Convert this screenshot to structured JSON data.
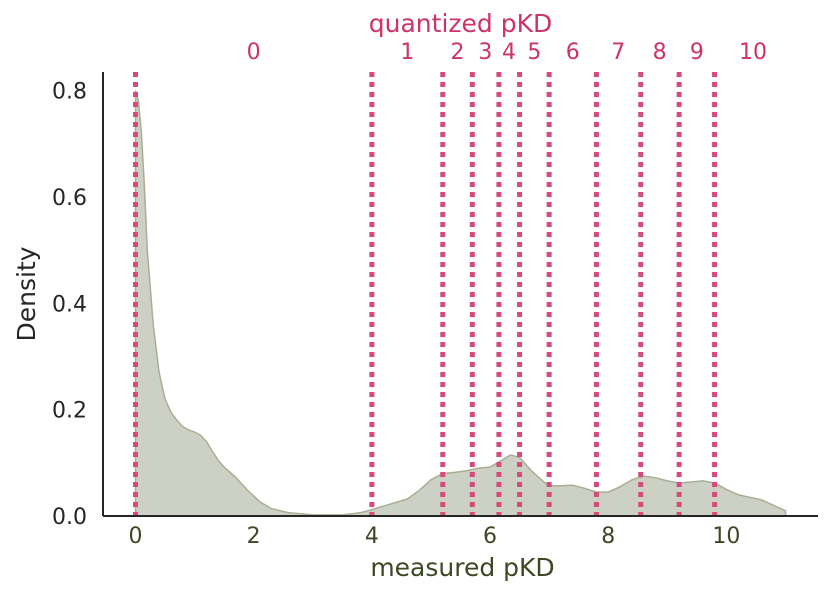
{
  "chart_data": {
    "type": "area",
    "title": "",
    "xlabel": "measured pKD",
    "ylabel": "Density",
    "top_axis_label": "quantized pKD",
    "xlim": [
      -0.55,
      11.55
    ],
    "ylim": [
      0,
      0.835
    ],
    "x_ticks": [
      0,
      2,
      4,
      6,
      8,
      10
    ],
    "y_ticks": [
      0.0,
      0.2,
      0.4,
      0.6,
      0.8
    ],
    "y_tick_labels": [
      "0.0",
      "0.2",
      "0.4",
      "0.6",
      "0.8"
    ],
    "grid": false,
    "series": [
      {
        "points": [
          [
            0.0,
            0.8
          ],
          [
            0.05,
            0.78
          ],
          [
            0.1,
            0.72
          ],
          [
            0.15,
            0.62
          ],
          [
            0.2,
            0.5
          ],
          [
            0.3,
            0.36
          ],
          [
            0.4,
            0.27
          ],
          [
            0.5,
            0.22
          ],
          [
            0.6,
            0.195
          ],
          [
            0.7,
            0.18
          ],
          [
            0.8,
            0.168
          ],
          [
            0.9,
            0.162
          ],
          [
            1.0,
            0.158
          ],
          [
            1.1,
            0.152
          ],
          [
            1.2,
            0.14
          ],
          [
            1.3,
            0.122
          ],
          [
            1.4,
            0.105
          ],
          [
            1.5,
            0.092
          ],
          [
            1.7,
            0.072
          ],
          [
            1.9,
            0.048
          ],
          [
            2.1,
            0.027
          ],
          [
            2.3,
            0.014
          ],
          [
            2.6,
            0.006
          ],
          [
            3.0,
            0.002
          ],
          [
            3.5,
            0.002
          ],
          [
            3.8,
            0.006
          ],
          [
            4.0,
            0.012
          ],
          [
            4.3,
            0.022
          ],
          [
            4.6,
            0.032
          ],
          [
            4.8,
            0.048
          ],
          [
            5.0,
            0.068
          ],
          [
            5.2,
            0.08
          ],
          [
            5.4,
            0.082
          ],
          [
            5.6,
            0.085
          ],
          [
            5.8,
            0.09
          ],
          [
            6.0,
            0.092
          ],
          [
            6.2,
            0.105
          ],
          [
            6.35,
            0.115
          ],
          [
            6.5,
            0.11
          ],
          [
            6.7,
            0.085
          ],
          [
            6.9,
            0.065
          ],
          [
            7.0,
            0.057
          ],
          [
            7.2,
            0.057
          ],
          [
            7.4,
            0.058
          ],
          [
            7.6,
            0.052
          ],
          [
            7.8,
            0.045
          ],
          [
            8.0,
            0.045
          ],
          [
            8.2,
            0.055
          ],
          [
            8.4,
            0.068
          ],
          [
            8.6,
            0.075
          ],
          [
            8.8,
            0.072
          ],
          [
            9.0,
            0.066
          ],
          [
            9.2,
            0.062
          ],
          [
            9.4,
            0.064
          ],
          [
            9.6,
            0.066
          ],
          [
            9.8,
            0.062
          ],
          [
            10.0,
            0.05
          ],
          [
            10.2,
            0.04
          ],
          [
            10.4,
            0.035
          ],
          [
            10.6,
            0.03
          ],
          [
            10.8,
            0.02
          ],
          [
            11.0,
            0.01
          ]
        ],
        "color": "#b9bdaa"
      }
    ],
    "quantization_boundaries": [
      0.0,
      4.0,
      5.2,
      5.7,
      6.15,
      6.5,
      7.0,
      7.8,
      8.55,
      9.2,
      9.8
    ],
    "top_tick_labels": [
      {
        "label": "0",
        "x": 2.0
      },
      {
        "label": "1",
        "x": 4.6
      },
      {
        "label": "2",
        "x": 5.45
      },
      {
        "label": "3",
        "x": 5.92
      },
      {
        "label": "4",
        "x": 6.32
      },
      {
        "label": "5",
        "x": 6.75
      },
      {
        "label": "6",
        "x": 7.4
      },
      {
        "label": "7",
        "x": 8.17
      },
      {
        "label": "8",
        "x": 8.87
      },
      {
        "label": "9",
        "x": 9.5
      },
      {
        "label": "10",
        "x": 10.45
      }
    ],
    "colors": {
      "area_fill": "#cdd0c4",
      "area_stroke": "#a9ae96",
      "boundary_line": "#d64b7b",
      "top_axis_text": "#cc3366",
      "x_axis_text": "#3d4723",
      "y_axis_text": "#262626",
      "axis_line": "#262626"
    }
  }
}
